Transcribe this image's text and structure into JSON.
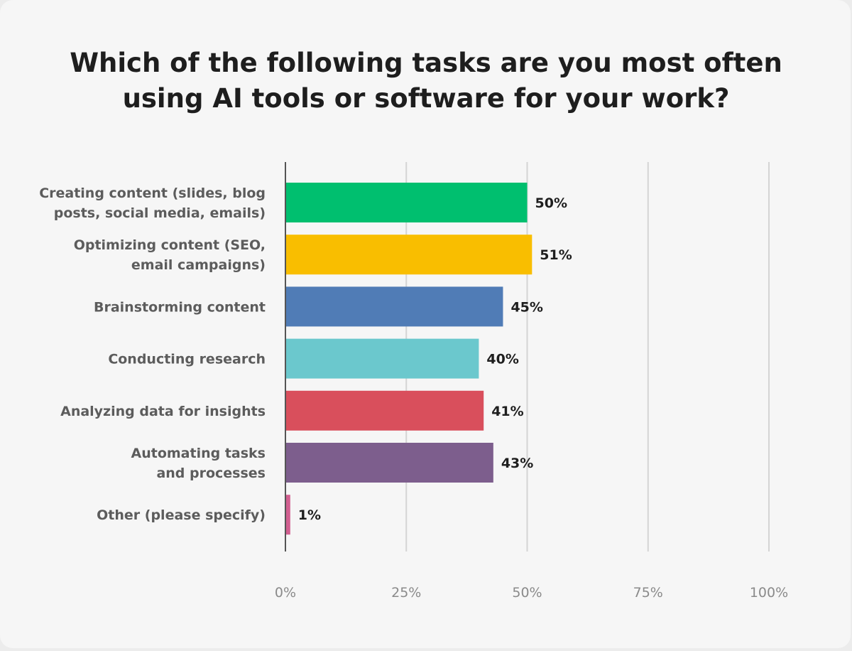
{
  "chart_data": {
    "type": "bar",
    "orientation": "horizontal",
    "title": "Which of the following tasks are you most often using AI tools or software for your work?",
    "categories": [
      "Creating content (slides, blog posts, social media, emails)",
      "Optimizing content (SEO, email campaigns)",
      "Brainstorming content",
      "Conducting research",
      "Analyzing data for insights",
      "Automating tasks and processes",
      "Other (please specify)"
    ],
    "category_lines": [
      [
        "Creating content (slides, blog",
        "posts, social media, emails)"
      ],
      [
        "Optimizing content (SEO,",
        "email campaigns)"
      ],
      [
        "Brainstorming content"
      ],
      [
        "Conducting research"
      ],
      [
        "Analyzing data for insights"
      ],
      [
        "Automating tasks",
        "and processes"
      ],
      [
        "Other (please specify)"
      ]
    ],
    "values": [
      50,
      51,
      45,
      40,
      41,
      43,
      1
    ],
    "value_labels": [
      "50%",
      "51%",
      "45%",
      "40%",
      "41%",
      "43%",
      "1%"
    ],
    "colors": [
      "#00bf6f",
      "#f9be00",
      "#507cb6",
      "#6bc8cd",
      "#d94f5c",
      "#7d5e8d",
      "#d25f90"
    ],
    "xlim": [
      0,
      100
    ],
    "xticks": [
      0,
      25,
      50,
      75,
      100
    ],
    "xtick_labels": [
      "0%",
      "25%",
      "50%",
      "75%",
      "100%"
    ],
    "grid": true,
    "gridline_color": "#d4d4d4",
    "axis_color": "#555555"
  }
}
